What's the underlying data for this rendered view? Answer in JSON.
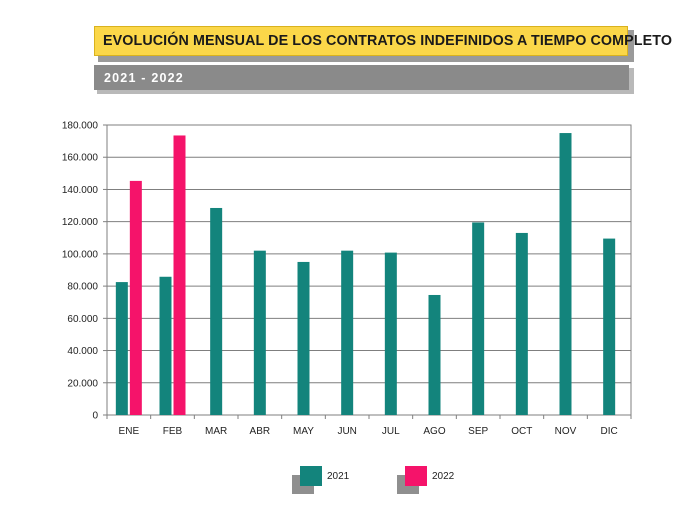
{
  "header": {
    "title": "EVOLUCIÓN MENSUAL DE LOS CONTRATOS INDEFINIDOS A TIEMPO COMPLETO",
    "subtitle": "2021 - 2022"
  },
  "legend": [
    {
      "label": "2021",
      "color": "#13847c"
    },
    {
      "label": "2022",
      "color": "#f5136a"
    }
  ],
  "chart_data": {
    "type": "bar",
    "title": "EVOLUCIÓN MENSUAL DE LOS CONTRATOS INDEFINIDOS A TIEMPO COMPLETO",
    "subtitle": "2021 - 2022",
    "xlabel": "",
    "ylabel": "",
    "categories": [
      "ENE",
      "FEB",
      "MAR",
      "ABR",
      "MAY",
      "JUN",
      "JUL",
      "AGO",
      "SEP",
      "OCT",
      "NOV",
      "DIC"
    ],
    "series": [
      {
        "name": "2021",
        "color": "#13847c",
        "values": [
          82500,
          85800,
          128500,
          102000,
          95000,
          102000,
          100800,
          74500,
          119500,
          113000,
          175000,
          109500
        ]
      },
      {
        "name": "2022",
        "color": "#f5136a",
        "values": [
          145300,
          173500,
          null,
          null,
          null,
          null,
          null,
          null,
          null,
          null,
          null,
          null
        ]
      }
    ],
    "ylim": [
      0,
      180000
    ],
    "yticks": [
      0,
      20000,
      40000,
      60000,
      80000,
      100000,
      120000,
      140000,
      160000,
      180000
    ],
    "ytick_labels": [
      "0",
      "20.000",
      "40.000",
      "60.000",
      "80.000",
      "100.000",
      "120.000",
      "140.000",
      "160.000",
      "180.000"
    ],
    "grid": true,
    "legend_position": "bottom-center"
  }
}
